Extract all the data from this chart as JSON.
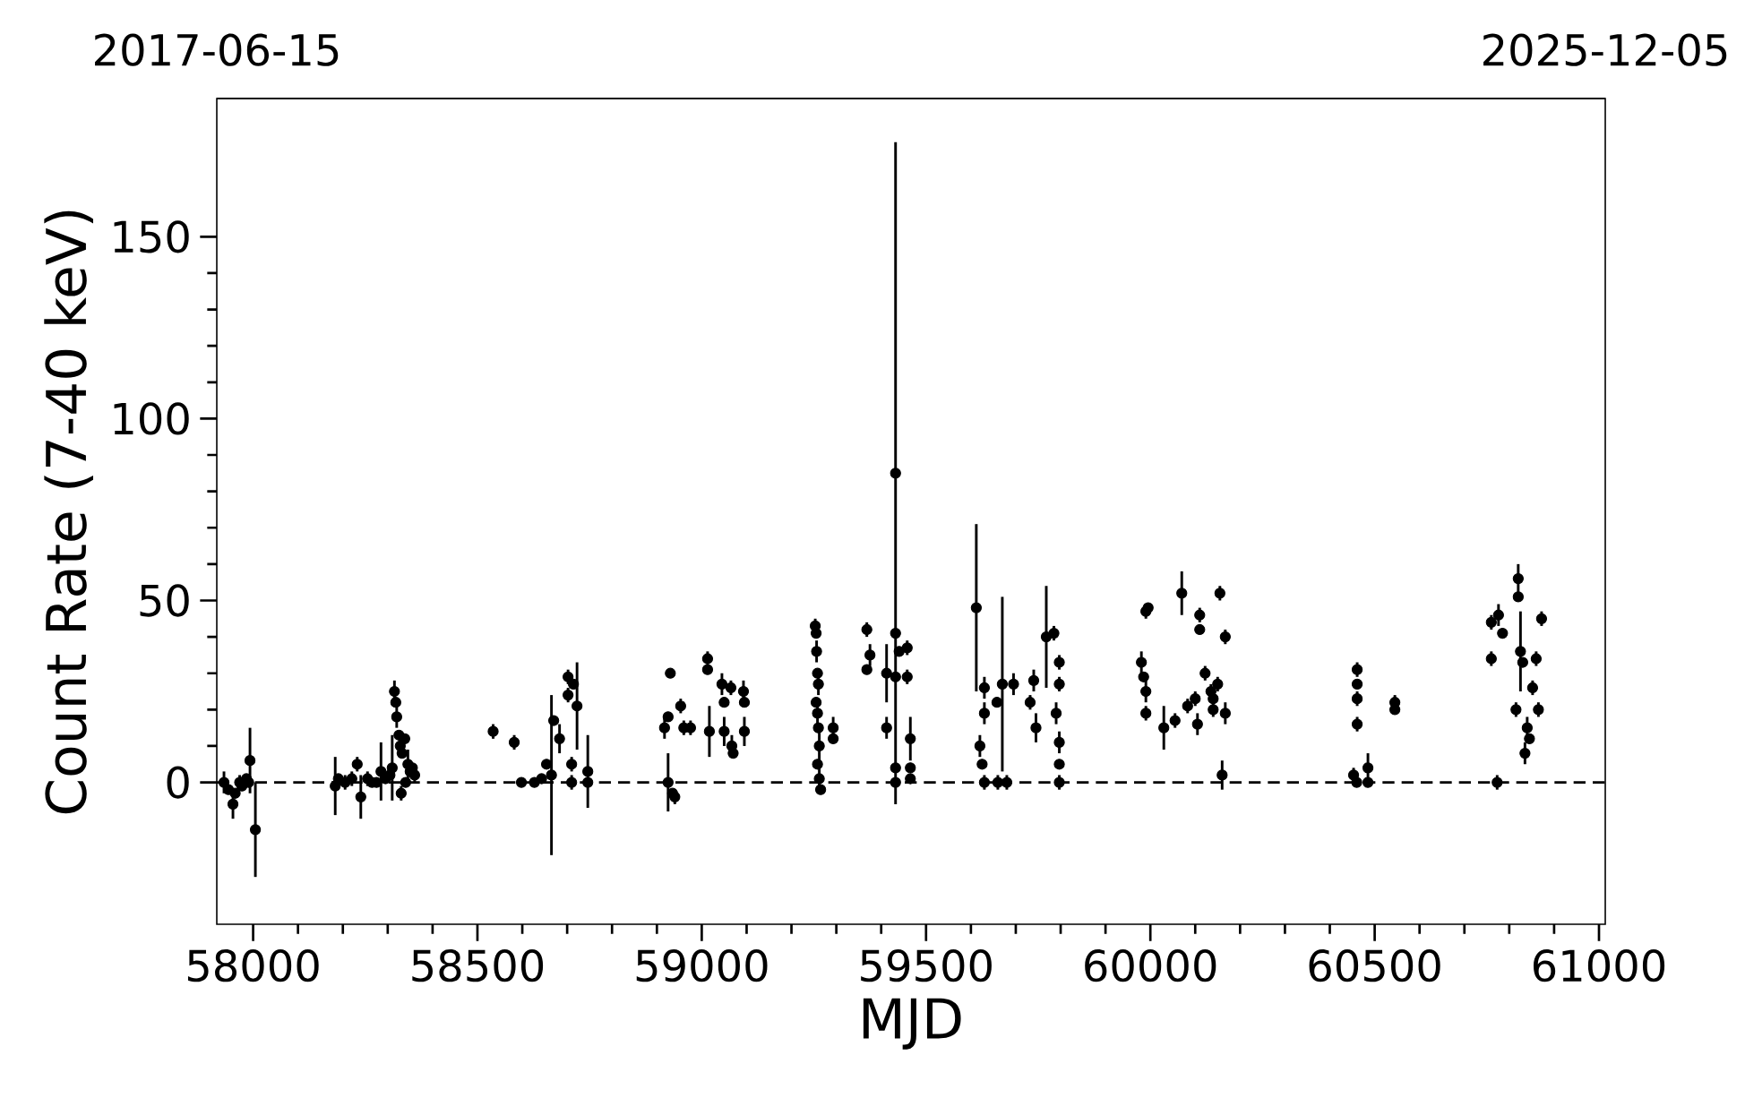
{
  "chart_data": {
    "type": "scatter",
    "xlabel": "MJD",
    "ylabel": "Count Rate (7-40 keV)",
    "xlim": [
      57919,
      61014
    ],
    "ylim": [
      -39,
      188
    ],
    "xticks": [
      58000,
      58500,
      59000,
      59500,
      60000,
      60500,
      61000
    ],
    "yticks": [
      0,
      50,
      100,
      150
    ],
    "x2lim": [
      "2017-06-15",
      "2025-12-05"
    ],
    "x2ticks": [
      "2017-06-15",
      "2025-12-05"
    ],
    "marker": "circle",
    "ref_lines": [
      {
        "axis": "y",
        "value": 0,
        "color": "#000000",
        "line_style": "dashed"
      }
    ],
    "series": [
      {
        "color": "#000000",
        "x": [
          57935,
          57945,
          57955,
          57960,
          57970,
          57975,
          57985,
          57990,
          57993,
          58005,
          58183,
          58190,
          58205,
          58220,
          58232,
          58240,
          58255,
          58265,
          58275,
          58285,
          58295,
          58305,
          58310,
          58315,
          58318,
          58320,
          58325,
          58328,
          58330,
          58332,
          58338,
          58340,
          58345,
          58350,
          58355,
          58360,
          58535,
          58582,
          58598,
          58627,
          58643,
          58654,
          58665,
          58670,
          58683,
          58702,
          58702,
          58710,
          58710,
          58714,
          58722,
          58746,
          58746,
          58917,
          58925,
          58925,
          58930,
          58935,
          58940,
          58953,
          58960,
          58975,
          59013,
          59013,
          59017,
          59045,
          59050,
          59050,
          59065,
          59067,
          59070,
          59093,
          59095,
          59095,
          59253,
          59255,
          59256,
          59258,
          59260,
          59255,
          59258,
          59260,
          59262,
          59258,
          59262,
          59265,
          59293,
          59293,
          59368,
          59375,
          59368,
          59412,
          59412,
          59432,
          59432,
          59440,
          59432,
          59432,
          59432,
          59458,
          59458,
          59465,
          59465,
          59465,
          59612,
          59620,
          59625,
          59630,
          59630,
          59630,
          59658,
          59660,
          59670,
          59680,
          59695,
          59732,
          59740,
          59745,
          59768,
          59785,
          59797,
          59797,
          59790,
          59797,
          59797,
          59797,
          59980,
          59985,
          59990,
          59990,
          59990,
          59995,
          60030,
          60055,
          60070,
          60083,
          60100,
          60105,
          60110,
          60110,
          60122,
          60135,
          60140,
          60140,
          60150,
          60155,
          60160,
          60167,
          60167,
          60453,
          60460,
          60461,
          60461,
          60461,
          60461,
          60485,
          60485,
          60545,
          60545,
          60760,
          60760,
          60773,
          60776,
          60785,
          60815,
          60820,
          60820,
          60825,
          60830,
          60835,
          60840,
          60845,
          60852,
          60860,
          60865,
          60872
        ],
        "values": [
          0,
          -2,
          -6,
          -3,
          0,
          -1,
          1,
          0,
          6,
          -13,
          -1,
          1,
          0,
          1,
          5,
          -4,
          1,
          0,
          0,
          3,
          1,
          2,
          4,
          25,
          22,
          18,
          13,
          10,
          -3,
          8,
          12,
          0,
          5,
          3,
          4,
          2,
          14,
          11,
          0,
          0,
          1,
          5,
          2,
          17,
          12,
          29,
          24,
          5,
          0,
          27,
          21,
          3,
          0,
          15,
          18,
          0,
          30,
          -3,
          -4,
          21,
          15,
          15,
          34,
          31,
          14,
          27,
          22,
          14,
          26,
          10,
          8,
          25,
          22,
          14,
          43,
          41,
          36,
          30,
          27,
          22,
          19,
          15,
          10,
          5,
          1,
          -2,
          15,
          12,
          42,
          35,
          31,
          30,
          15,
          85,
          41,
          36,
          29,
          4,
          0,
          37,
          29,
          12,
          4,
          1,
          48,
          10,
          5,
          26,
          19,
          0,
          22,
          0,
          27,
          0,
          27,
          22,
          28,
          15,
          40,
          41,
          33,
          27,
          19,
          11,
          5,
          0,
          33,
          29,
          47,
          25,
          19,
          48,
          15,
          17,
          52,
          21,
          23,
          16,
          46,
          42,
          30,
          25,
          23,
          20,
          27,
          52,
          2,
          40,
          19,
          2,
          0,
          31,
          27,
          23,
          16,
          4,
          0,
          22,
          20,
          44,
          34,
          0,
          46,
          41,
          20,
          56,
          51,
          36,
          33,
          8,
          15,
          12,
          26,
          34,
          20,
          45
        ],
        "errors": [
          3,
          null,
          4,
          null,
          2,
          null,
          null,
          null,
          9,
          13,
          8,
          null,
          2,
          2,
          2,
          6,
          2,
          null,
          null,
          8,
          null,
          null,
          9,
          3,
          null,
          3,
          null,
          3,
          2,
          null,
          null,
          null,
          4,
          null,
          null,
          2,
          2,
          2,
          1,
          1,
          1,
          null,
          22,
          null,
          4,
          2,
          2,
          2,
          2,
          null,
          12,
          10,
          null,
          3,
          null,
          8,
          1,
          null,
          2,
          2,
          2,
          2,
          2,
          null,
          7,
          3,
          1,
          4,
          2,
          3,
          null,
          3,
          null,
          4,
          2,
          null,
          3,
          null,
          3,
          null,
          3,
          null,
          4,
          null,
          3,
          null,
          3,
          null,
          2,
          3,
          null,
          8,
          3,
          91,
          null,
          null,
          null,
          null,
          null,
          2,
          2,
          6,
          null,
          null,
          23,
          3,
          null,
          3,
          3,
          2,
          null,
          2,
          24,
          2,
          3,
          2,
          3,
          4,
          14,
          2,
          2,
          2,
          3,
          3,
          null,
          2,
          3,
          null,
          2,
          3,
          2,
          null,
          6,
          2,
          6,
          2,
          2,
          3,
          2,
          null,
          2,
          2,
          null,
          2,
          2,
          2,
          4,
          2,
          3,
          2,
          null,
          2,
          null,
          2,
          2,
          4,
          null,
          2,
          null,
          2,
          2,
          2,
          3,
          1,
          2,
          4,
          null,
          11,
          null,
          3,
          3,
          null,
          2,
          2,
          2,
          2
        ]
      }
    ]
  }
}
